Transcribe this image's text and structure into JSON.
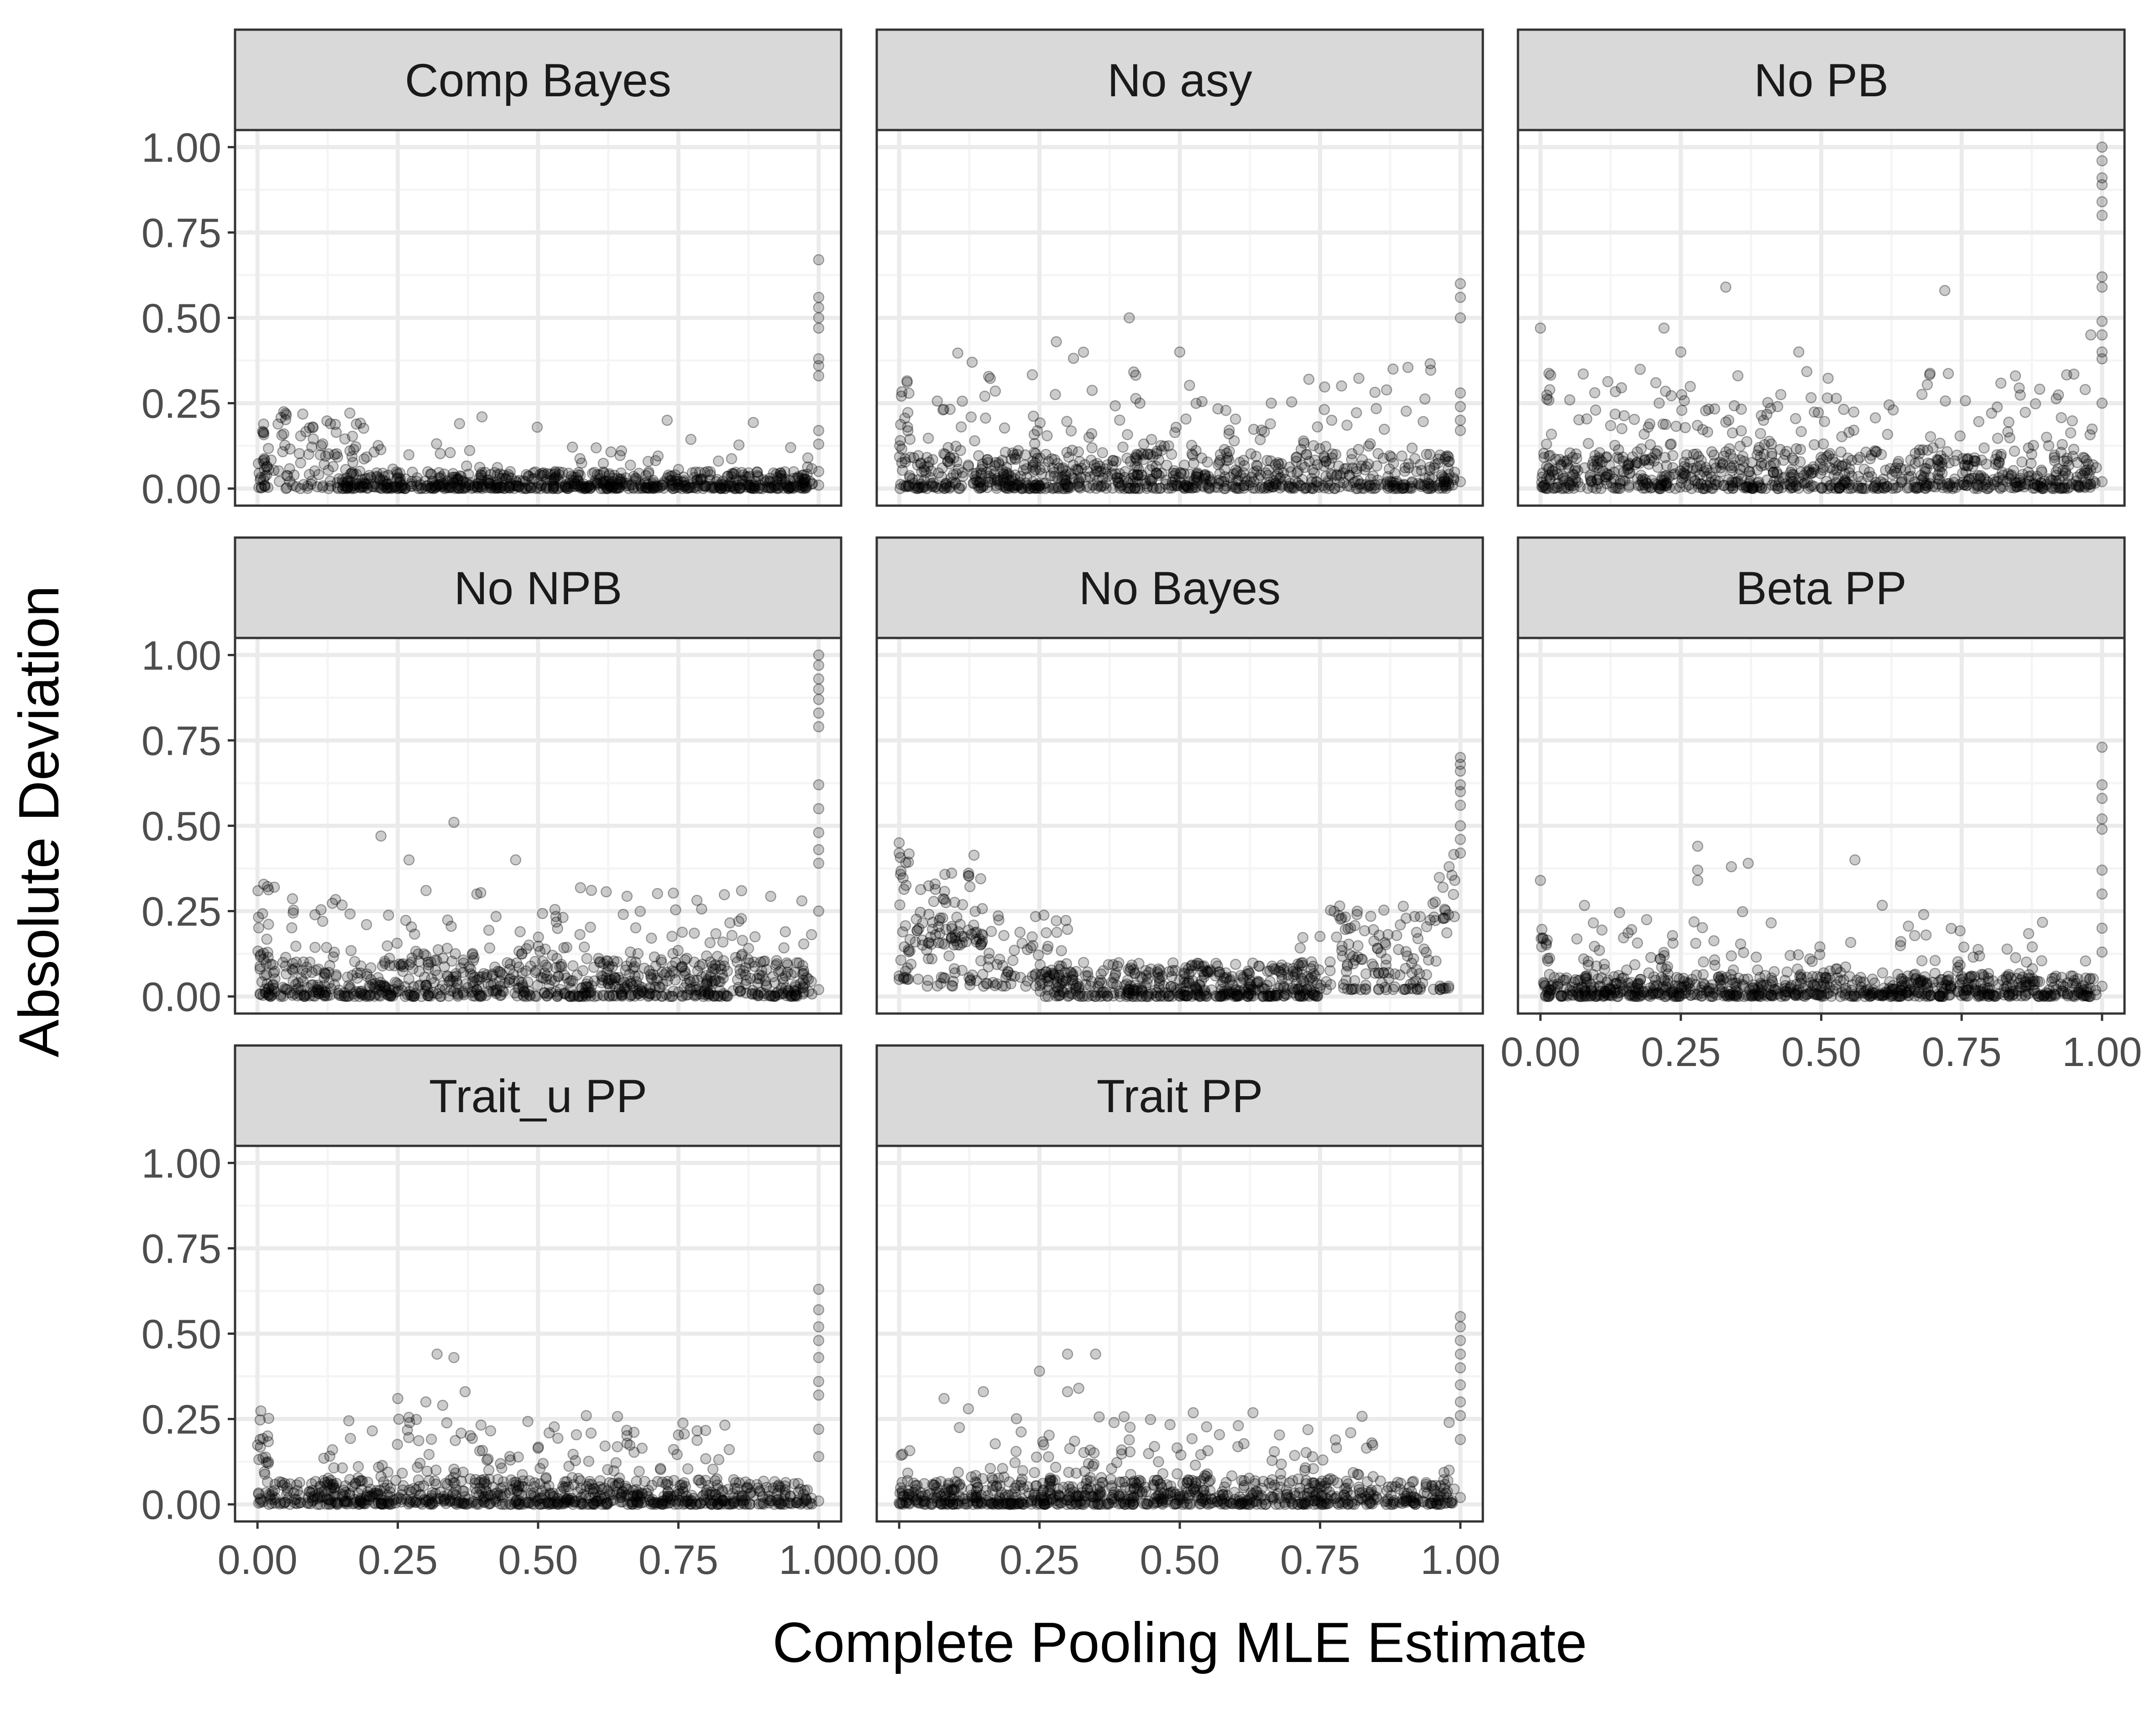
{
  "colors": {
    "background": "#ffffff",
    "panel_border": "#333333",
    "strip_fill": "#d9d9d9",
    "grid_major": "#ebebeb",
    "grid_minor": "#f5f5f5",
    "point": "#000000",
    "tick_text": "#4d4d4d"
  },
  "chart_data": {
    "type": "scatter",
    "layout": "facet_wrap",
    "ncol": 3,
    "title": "",
    "xlabel": "Complete Pooling MLE Estimate",
    "ylabel": "Absolute Deviation",
    "xlim": [
      -0.04,
      1.04
    ],
    "ylim": [
      -0.05,
      1.05
    ],
    "xticks": [
      "0.00",
      "0.25",
      "0.50",
      "0.75",
      "1.00"
    ],
    "yticks": [
      "0.00",
      "0.25",
      "0.50",
      "0.75",
      "1.00"
    ],
    "grid": true,
    "point_alpha": 0.2,
    "facets": [
      {
        "name": "Comp Bayes",
        "clusters": [
          {
            "x_range": [
              0.0,
              0.02
            ],
            "y_range": [
              0.0,
              0.2
            ],
            "n": 28
          },
          {
            "x_range": [
              0.02,
              0.2
            ],
            "y_range": [
              0.0,
              0.23
            ],
            "n": 90
          },
          {
            "x_range": [
              0.15,
              0.98
            ],
            "y_range": [
              0.0,
              0.05
            ],
            "n": 650
          },
          {
            "x_range": [
              0.15,
              0.9
            ],
            "y_range": [
              0.04,
              0.21
            ],
            "n": 45
          },
          {
            "x_range": [
              0.97,
              0.99
            ],
            "y_range": [
              0.0,
              0.1
            ],
            "n": 8
          }
        ],
        "points": [
          {
            "x": 1.0,
            "y": 0.67
          },
          {
            "x": 1.0,
            "y": 0.56
          },
          {
            "x": 1.0,
            "y": 0.53
          },
          {
            "x": 1.0,
            "y": 0.5
          },
          {
            "x": 1.0,
            "y": 0.47
          },
          {
            "x": 1.0,
            "y": 0.38
          },
          {
            "x": 1.0,
            "y": 0.36
          },
          {
            "x": 1.0,
            "y": 0.33
          },
          {
            "x": 1.0,
            "y": 0.17
          },
          {
            "x": 1.0,
            "y": 0.13
          },
          {
            "x": 1.0,
            "y": 0.05
          },
          {
            "x": 1.0,
            "y": 0.01
          },
          {
            "x": 0.73,
            "y": 0.2
          },
          {
            "x": 0.4,
            "y": 0.21
          },
          {
            "x": 0.05,
            "y": 0.22
          },
          {
            "x": 0.13,
            "y": 0.19
          },
          {
            "x": 0.36,
            "y": 0.19
          },
          {
            "x": 0.95,
            "y": 0.12
          }
        ]
      },
      {
        "name": "No asy",
        "clusters": [
          {
            "x_range": [
              0.0,
              0.02
            ],
            "y_range": [
              0.0,
              0.32
            ],
            "n": 30
          },
          {
            "x_range": [
              0.02,
              0.98
            ],
            "y_range": [
              0.0,
              0.1
            ],
            "n": 700
          },
          {
            "x_range": [
              0.05,
              0.95
            ],
            "y_range": [
              0.1,
              0.4
            ],
            "n": 130
          },
          {
            "x_range": [
              0.97,
              0.99
            ],
            "y_range": [
              0.0,
              0.15
            ],
            "n": 10
          }
        ],
        "points": [
          {
            "x": 0.41,
            "y": 0.5
          },
          {
            "x": 0.28,
            "y": 0.43
          },
          {
            "x": 0.5,
            "y": 0.4
          },
          {
            "x": 1.0,
            "y": 0.6
          },
          {
            "x": 1.0,
            "y": 0.56
          },
          {
            "x": 1.0,
            "y": 0.5
          },
          {
            "x": 1.0,
            "y": 0.28
          },
          {
            "x": 1.0,
            "y": 0.24
          },
          {
            "x": 1.0,
            "y": 0.2
          },
          {
            "x": 1.0,
            "y": 0.17
          },
          {
            "x": 1.0,
            "y": 0.02
          },
          {
            "x": 0.13,
            "y": 0.37
          },
          {
            "x": 0.88,
            "y": 0.35
          },
          {
            "x": 0.73,
            "y": 0.32
          }
        ]
      },
      {
        "name": "No PB",
        "clusters": [
          {
            "x_range": [
              0.0,
              0.02
            ],
            "y_range": [
              0.0,
              0.35
            ],
            "n": 30
          },
          {
            "x_range": [
              0.02,
              0.98
            ],
            "y_range": [
              0.0,
              0.1
            ],
            "n": 680
          },
          {
            "x_range": [
              0.05,
              0.95
            ],
            "y_range": [
              0.1,
              0.35
            ],
            "n": 160
          },
          {
            "x_range": [
              0.97,
              0.99
            ],
            "y_range": [
              0.0,
              0.2
            ],
            "n": 10
          }
        ],
        "points": [
          {
            "x": 0.0,
            "y": 0.47
          },
          {
            "x": 0.33,
            "y": 0.59
          },
          {
            "x": 0.22,
            "y": 0.47
          },
          {
            "x": 0.72,
            "y": 0.58
          },
          {
            "x": 0.46,
            "y": 0.4
          },
          {
            "x": 0.25,
            "y": 0.4
          },
          {
            "x": 1.0,
            "y": 1.0
          },
          {
            "x": 1.0,
            "y": 0.96
          },
          {
            "x": 1.0,
            "y": 0.91
          },
          {
            "x": 1.0,
            "y": 0.89
          },
          {
            "x": 1.0,
            "y": 0.84
          },
          {
            "x": 1.0,
            "y": 0.8
          },
          {
            "x": 1.0,
            "y": 0.62
          },
          {
            "x": 1.0,
            "y": 0.59
          },
          {
            "x": 1.0,
            "y": 0.49
          },
          {
            "x": 1.0,
            "y": 0.45
          },
          {
            "x": 1.0,
            "y": 0.4
          },
          {
            "x": 1.0,
            "y": 0.38
          },
          {
            "x": 1.0,
            "y": 0.25
          },
          {
            "x": 0.98,
            "y": 0.45
          },
          {
            "x": 0.97,
            "y": 0.29
          },
          {
            "x": 1.0,
            "y": 0.02
          }
        ]
      },
      {
        "name": "No NPB",
        "clusters": [
          {
            "x_range": [
              0.0,
              0.02
            ],
            "y_range": [
              0.0,
              0.37
            ],
            "n": 30
          },
          {
            "x_range": [
              0.02,
              0.98
            ],
            "y_range": [
              0.0,
              0.1
            ],
            "n": 680
          },
          {
            "x_range": [
              0.05,
              0.95
            ],
            "y_range": [
              0.1,
              0.32
            ],
            "n": 150
          },
          {
            "x_range": [
              0.97,
              0.99
            ],
            "y_range": [
              0.0,
              0.2
            ],
            "n": 10
          }
        ],
        "points": [
          {
            "x": 0.35,
            "y": 0.51
          },
          {
            "x": 0.22,
            "y": 0.47
          },
          {
            "x": 0.46,
            "y": 0.4
          },
          {
            "x": 0.27,
            "y": 0.4
          },
          {
            "x": 0.03,
            "y": 0.32
          },
          {
            "x": 1.0,
            "y": 1.0
          },
          {
            "x": 1.0,
            "y": 0.97
          },
          {
            "x": 1.0,
            "y": 0.93
          },
          {
            "x": 1.0,
            "y": 0.9
          },
          {
            "x": 1.0,
            "y": 0.87
          },
          {
            "x": 1.0,
            "y": 0.83
          },
          {
            "x": 1.0,
            "y": 0.79
          },
          {
            "x": 1.0,
            "y": 0.62
          },
          {
            "x": 1.0,
            "y": 0.55
          },
          {
            "x": 1.0,
            "y": 0.48
          },
          {
            "x": 1.0,
            "y": 0.43
          },
          {
            "x": 1.0,
            "y": 0.39
          },
          {
            "x": 1.0,
            "y": 0.25
          },
          {
            "x": 0.97,
            "y": 0.28
          },
          {
            "x": 1.0,
            "y": 0.02
          }
        ]
      },
      {
        "name": "No Bayes",
        "clusters": [
          {
            "x_range": [
              0.0,
              0.02
            ],
            "y_range": [
              0.05,
              0.47
            ],
            "n": 25
          },
          {
            "x_range": [
              0.02,
              0.15
            ],
            "y_range": [
              0.15,
              0.42
            ],
            "n": 60
          },
          {
            "x_range": [
              0.02,
              0.3
            ],
            "y_range": [
              0.03,
              0.25
            ],
            "n": 110
          },
          {
            "x_range": [
              0.25,
              0.75
            ],
            "y_range": [
              0.0,
              0.1
            ],
            "n": 420
          },
          {
            "x_range": [
              0.7,
              0.98
            ],
            "y_range": [
              0.02,
              0.27
            ],
            "n": 150
          },
          {
            "x_range": [
              0.95,
              0.99
            ],
            "y_range": [
              0.22,
              0.45
            ],
            "n": 14
          }
        ],
        "points": [
          {
            "x": 1.0,
            "y": 0.7
          },
          {
            "x": 1.0,
            "y": 0.68
          },
          {
            "x": 1.0,
            "y": 0.66
          },
          {
            "x": 1.0,
            "y": 0.62
          },
          {
            "x": 1.0,
            "y": 0.6
          },
          {
            "x": 1.0,
            "y": 0.56
          },
          {
            "x": 1.0,
            "y": 0.5
          },
          {
            "x": 1.0,
            "y": 0.46
          },
          {
            "x": 1.0,
            "y": 0.42
          },
          {
            "x": 0.98,
            "y": 0.38
          },
          {
            "x": 0.99,
            "y": 0.34
          },
          {
            "x": 0.0,
            "y": 0.45
          },
          {
            "x": 0.0,
            "y": 0.42
          },
          {
            "x": 0.0,
            "y": 0.06
          },
          {
            "x": 0.0,
            "y": 0.05
          }
        ]
      },
      {
        "name": "Beta PP",
        "clusters": [
          {
            "x_range": [
              0.0,
              0.02
            ],
            "y_range": [
              0.0,
              0.2
            ],
            "n": 28
          },
          {
            "x_range": [
              0.02,
              0.98
            ],
            "y_range": [
              0.0,
              0.06
            ],
            "n": 700
          },
          {
            "x_range": [
              0.05,
              0.9
            ],
            "y_range": [
              0.06,
              0.27
            ],
            "n": 110
          },
          {
            "x_range": [
              0.97,
              0.99
            ],
            "y_range": [
              0.0,
              0.12
            ],
            "n": 10
          }
        ],
        "points": [
          {
            "x": 0.0,
            "y": 0.34
          },
          {
            "x": 0.28,
            "y": 0.44
          },
          {
            "x": 0.37,
            "y": 0.39
          },
          {
            "x": 0.28,
            "y": 0.34
          },
          {
            "x": 0.28,
            "y": 0.37
          },
          {
            "x": 0.56,
            "y": 0.4
          },
          {
            "x": 0.34,
            "y": 0.38
          },
          {
            "x": 1.0,
            "y": 0.73
          },
          {
            "x": 1.0,
            "y": 0.62
          },
          {
            "x": 1.0,
            "y": 0.58
          },
          {
            "x": 1.0,
            "y": 0.52
          },
          {
            "x": 1.0,
            "y": 0.49
          },
          {
            "x": 1.0,
            "y": 0.37
          },
          {
            "x": 1.0,
            "y": 0.3
          },
          {
            "x": 1.0,
            "y": 0.2
          },
          {
            "x": 1.0,
            "y": 0.13
          },
          {
            "x": 1.0,
            "y": 0.03
          }
        ]
      },
      {
        "name": "Trait_u PP",
        "clusters": [
          {
            "x_range": [
              0.0,
              0.02
            ],
            "y_range": [
              0.0,
              0.3
            ],
            "n": 26
          },
          {
            "x_range": [
              0.02,
              0.98
            ],
            "y_range": [
              0.0,
              0.07
            ],
            "n": 700
          },
          {
            "x_range": [
              0.1,
              0.85
            ],
            "y_range": [
              0.07,
              0.26
            ],
            "n": 120
          },
          {
            "x_range": [
              0.97,
              0.99
            ],
            "y_range": [
              0.0,
              0.05
            ],
            "n": 10
          }
        ],
        "points": [
          {
            "x": 0.32,
            "y": 0.44
          },
          {
            "x": 0.35,
            "y": 0.43
          },
          {
            "x": 0.37,
            "y": 0.33
          },
          {
            "x": 0.3,
            "y": 0.3
          },
          {
            "x": 0.25,
            "y": 0.31
          },
          {
            "x": 0.33,
            "y": 0.29
          },
          {
            "x": 1.0,
            "y": 0.63
          },
          {
            "x": 1.0,
            "y": 0.57
          },
          {
            "x": 1.0,
            "y": 0.52
          },
          {
            "x": 1.0,
            "y": 0.48
          },
          {
            "x": 1.0,
            "y": 0.43
          },
          {
            "x": 1.0,
            "y": 0.36
          },
          {
            "x": 1.0,
            "y": 0.32
          },
          {
            "x": 1.0,
            "y": 0.22
          },
          {
            "x": 1.0,
            "y": 0.14
          },
          {
            "x": 1.0,
            "y": 0.01
          }
        ]
      },
      {
        "name": "Trait PP",
        "clusters": [
          {
            "x_range": [
              0.0,
              0.02
            ],
            "y_range": [
              0.0,
              0.2
            ],
            "n": 26
          },
          {
            "x_range": [
              0.02,
              0.98
            ],
            "y_range": [
              0.0,
              0.07
            ],
            "n": 700
          },
          {
            "x_range": [
              0.1,
              0.85
            ],
            "y_range": [
              0.07,
              0.28
            ],
            "n": 120
          },
          {
            "x_range": [
              0.97,
              0.99
            ],
            "y_range": [
              0.0,
              0.1
            ],
            "n": 10
          }
        ],
        "points": [
          {
            "x": 0.3,
            "y": 0.44
          },
          {
            "x": 0.35,
            "y": 0.44
          },
          {
            "x": 0.25,
            "y": 0.39
          },
          {
            "x": 0.3,
            "y": 0.33
          },
          {
            "x": 0.32,
            "y": 0.34
          },
          {
            "x": 0.08,
            "y": 0.31
          },
          {
            "x": 0.15,
            "y": 0.33
          },
          {
            "x": 1.0,
            "y": 0.55
          },
          {
            "x": 1.0,
            "y": 0.52
          },
          {
            "x": 1.0,
            "y": 0.48
          },
          {
            "x": 1.0,
            "y": 0.44
          },
          {
            "x": 1.0,
            "y": 0.4
          },
          {
            "x": 1.0,
            "y": 0.35
          },
          {
            "x": 1.0,
            "y": 0.3
          },
          {
            "x": 1.0,
            "y": 0.26
          },
          {
            "x": 1.0,
            "y": 0.19
          },
          {
            "x": 1.0,
            "y": 0.02
          },
          {
            "x": 0.98,
            "y": 0.1
          },
          {
            "x": 0.98,
            "y": 0.24
          }
        ]
      }
    ]
  }
}
